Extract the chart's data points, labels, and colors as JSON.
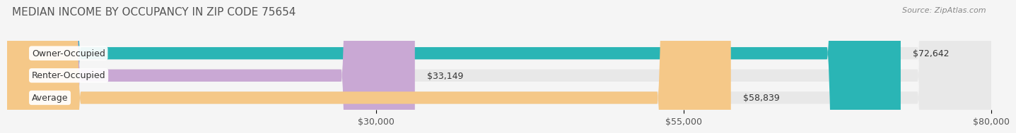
{
  "title": "MEDIAN INCOME BY OCCUPANCY IN ZIP CODE 75654",
  "source": "Source: ZipAtlas.com",
  "categories": [
    "Owner-Occupied",
    "Renter-Occupied",
    "Average"
  ],
  "values": [
    72642,
    33149,
    58839
  ],
  "bar_colors": [
    "#2ab5b5",
    "#c9a8d4",
    "#f5c888"
  ],
  "value_labels": [
    "$72,642",
    "$33,149",
    "$58,839"
  ],
  "xlim": [
    0,
    80000
  ],
  "xticks": [
    30000,
    55000,
    80000
  ],
  "xtick_labels": [
    "$30,000",
    "$55,000",
    "$80,000"
  ],
  "background_color": "#f5f5f5",
  "bar_bg_color": "#e8e8e8",
  "title_fontsize": 11,
  "label_fontsize": 9,
  "tick_fontsize": 9,
  "bar_height": 0.55
}
